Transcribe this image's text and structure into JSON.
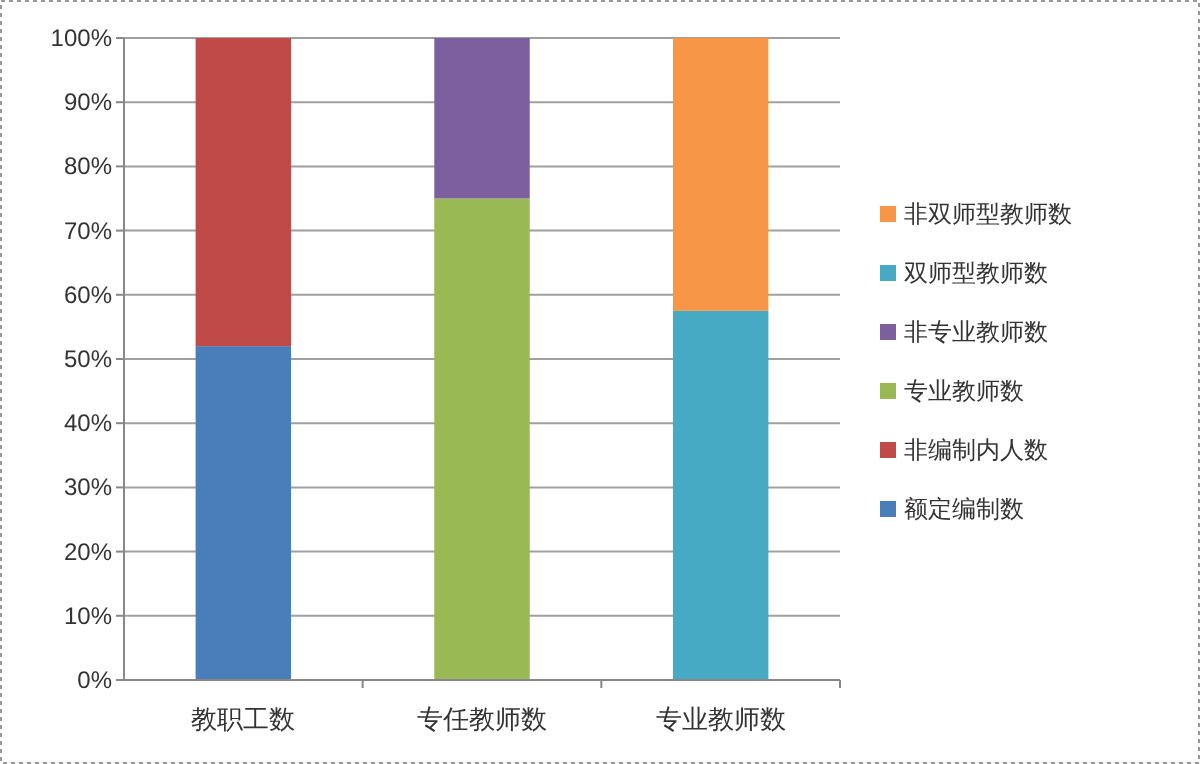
{
  "chart_data": {
    "type": "bar",
    "stacked": true,
    "categories": [
      "教职工数",
      "专任教师数",
      "专业教师数"
    ],
    "series": [
      {
        "name": "额定编制数",
        "color": "#4a7ebb",
        "values": [
          52,
          null,
          null
        ]
      },
      {
        "name": "非编制内人数",
        "color": "#be4b48",
        "values": [
          48,
          null,
          null
        ]
      },
      {
        "name": "专业教师数",
        "color": "#98b954",
        "values": [
          null,
          75,
          null
        ]
      },
      {
        "name": "非专业教师数",
        "color": "#7d5fa0",
        "values": [
          null,
          25,
          null
        ]
      },
      {
        "name": "双师型教师数",
        "color": "#46aac5",
        "values": [
          null,
          null,
          57.5
        ]
      },
      {
        "name": "非双师型教师数",
        "color": "#f79646",
        "values": [
          null,
          null,
          42.5
        ]
      }
    ],
    "ylim": [
      0,
      100
    ],
    "yticks": [
      {
        "value": 0,
        "label": "0%"
      },
      {
        "value": 10,
        "label": "10%"
      },
      {
        "value": 20,
        "label": "20%"
      },
      {
        "value": 30,
        "label": "30%"
      },
      {
        "value": 40,
        "label": "40%"
      },
      {
        "value": 50,
        "label": "50%"
      },
      {
        "value": 60,
        "label": "60%"
      },
      {
        "value": 70,
        "label": "70%"
      },
      {
        "value": 80,
        "label": "80%"
      },
      {
        "value": 90,
        "label": "90%"
      },
      {
        "value": 100,
        "label": "100%"
      }
    ],
    "grid": "y",
    "legend": "right"
  }
}
